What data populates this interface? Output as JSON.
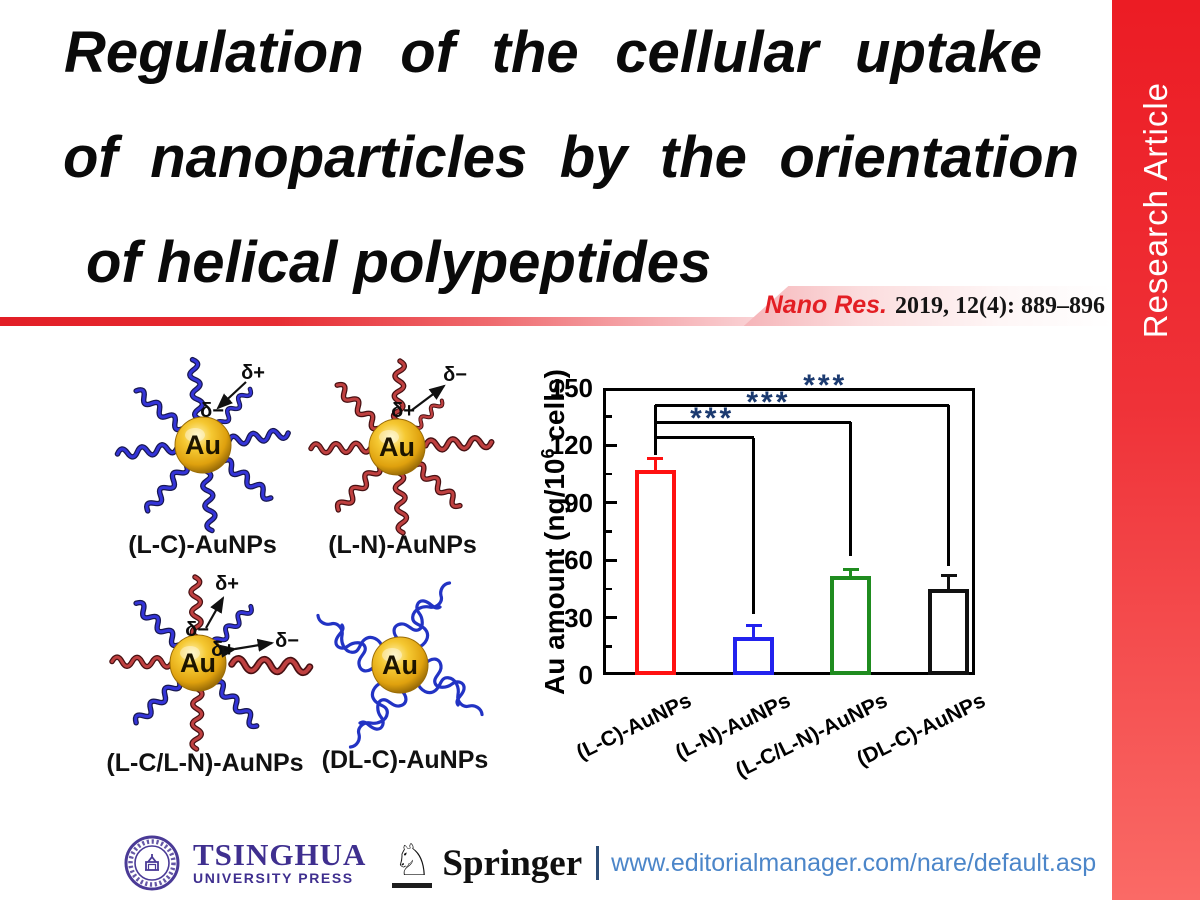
{
  "header": {
    "title_lines": [
      "Regulation of the cellular uptake",
      "of nanoparticles by the orientation",
      "of helical polypeptides"
    ],
    "journal_name": "Nano Res.",
    "citation": "2019, 12(4): 889–896",
    "side_banner": "Research Article"
  },
  "colors": {
    "accent_red": "#ed1c24",
    "banner_gradient_top": "#ec1c24",
    "banner_gradient_bottom": "#fa6a66",
    "chain_blue": "#3434d8",
    "chain_red": "#bf4040",
    "gold_core": "#e8b522",
    "significance_star": "#1b3a70",
    "url_blue": "#4c86c9",
    "tsinghua_purple": "#3f2f8f"
  },
  "schematics": {
    "panels": [
      {
        "caption": "(L-C)-AuNPs",
        "core": "Au",
        "outer_charge": "δ+",
        "inner_charge": "δ−"
      },
      {
        "caption": "(L-N)-AuNPs",
        "core": "Au",
        "inner_charge": "δ+",
        "outer_charge": "δ−"
      },
      {
        "caption": "(L-C/L-N)-AuNPs",
        "core": "Au",
        "top_outer": "δ+",
        "top_inner": "δ−",
        "right_inner": "δ+",
        "right_outer": "δ−"
      },
      {
        "caption": "(DL-C)-AuNPs",
        "core": "Au"
      }
    ]
  },
  "chart_data": {
    "type": "bar",
    "title": "",
    "categories": [
      "(L-C)-AuNPs",
      "(L-N)-AuNPs",
      "(L-C/L-N)-AuNPs",
      "(DL-C)-AuNPs"
    ],
    "values": [
      107,
      20,
      52,
      45
    ],
    "errors": [
      6,
      6,
      3,
      7
    ],
    "bar_colors": [
      "#ff1111",
      "#2222ee",
      "#1f8c1f",
      "#111111"
    ],
    "ylabel": "Au amount (ng/10⁶ cells)",
    "ylabel_parts": [
      "Au amount (ng/10",
      "6",
      " cells)"
    ],
    "xlabel": "",
    "ylim": [
      0,
      150
    ],
    "yticks": [
      0,
      30,
      60,
      90,
      120,
      150
    ],
    "grid": false,
    "legend": "none",
    "bar_fill": "#ffffff",
    "significance": [
      {
        "compare_from": 0,
        "compare_to": 1,
        "label": "***",
        "bracket_y": 124,
        "drop_to_y": 32
      },
      {
        "compare_from": 0,
        "compare_to": 2,
        "label": "***",
        "bracket_y": 132,
        "drop_to_y": 62
      },
      {
        "compare_from": 0,
        "compare_to": 3,
        "label": "***",
        "bracket_y": 141,
        "drop_to_y": 57
      }
    ],
    "sig_stem_from_y": 115
  },
  "footer": {
    "press_name": "TSINGHUA",
    "press_subtitle": "UNIVERSITY PRESS",
    "publisher": "Springer",
    "separator_icon": "vertical-bar",
    "url": "www.editorialmanager.com/nare/default.asp"
  }
}
